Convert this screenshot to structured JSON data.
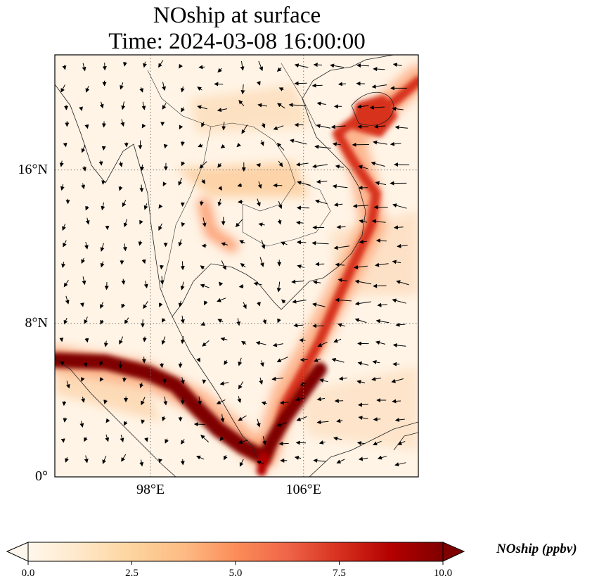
{
  "title": {
    "line1": "NOship at surface",
    "line2": "Time: 2024-03-08 16:00:00"
  },
  "map": {
    "variable": "NOship",
    "level": "surface",
    "lon_range": [
      93,
      112
    ],
    "lat_range": [
      0,
      22
    ],
    "lat_ticks": [
      {
        "value": 0,
        "label": "0°"
      },
      {
        "value": 8,
        "label": "8°N"
      },
      {
        "value": 16,
        "label": "16°N"
      }
    ],
    "lon_ticks": [
      {
        "value": 98,
        "label": "98°E"
      },
      {
        "value": 106,
        "label": "106°E"
      }
    ],
    "gridlines": "dotted",
    "wind_vectors": true,
    "coastlines": true,
    "country_borders": true
  },
  "colorbar": {
    "label": "NOship (ppbv)",
    "min": 0.0,
    "max": 10.0,
    "ticks": [
      "0.0",
      "2.5",
      "5.0",
      "7.5",
      "10.0"
    ],
    "colormap": "OrRd",
    "extend": "both",
    "colors": [
      "#fff7ec",
      "#fee8c8",
      "#fdd49e",
      "#fdbb84",
      "#fc8d59",
      "#ef6548",
      "#d7301f",
      "#b30000",
      "#7f0000"
    ]
  }
}
